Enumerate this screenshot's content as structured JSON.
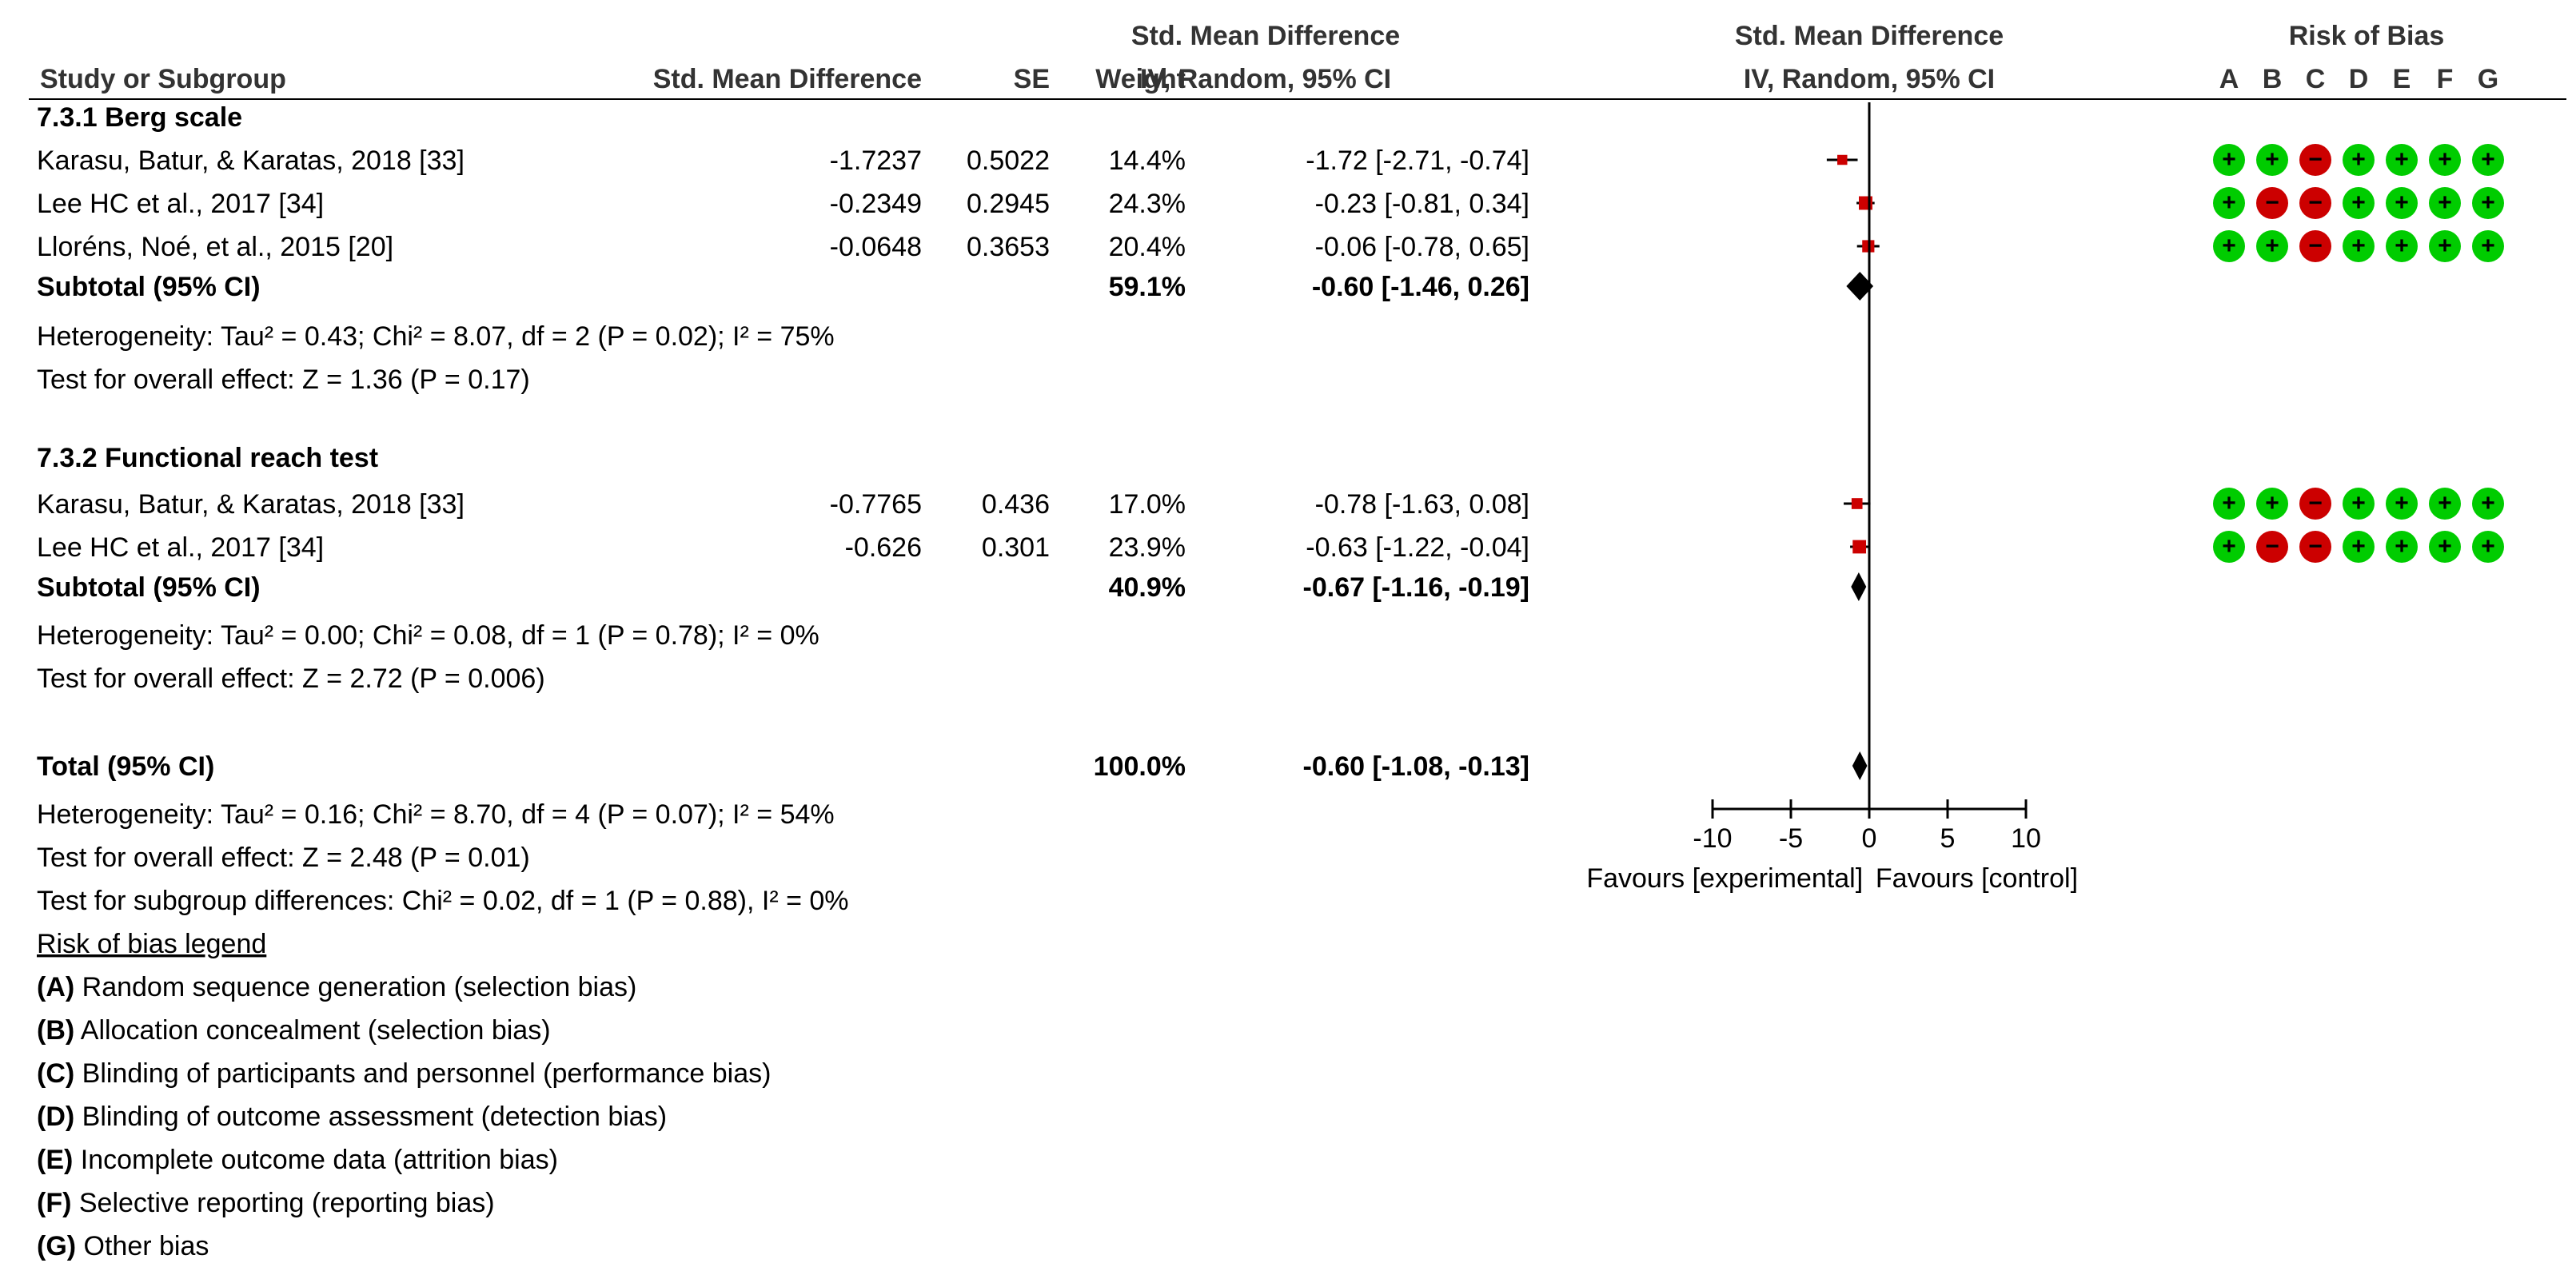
{
  "headers": {
    "study": "Study or Subgroup",
    "smd": "Std. Mean Difference",
    "se": "SE",
    "weight": "Weight",
    "ci_title": "Std. Mean Difference",
    "ci_sub": "IV, Random, 95% CI",
    "plot_title": "Std. Mean Difference",
    "plot_sub": "IV, Random, 95% CI",
    "rob_title": "Risk of Bias",
    "rob_letters": [
      "A",
      "B",
      "C",
      "D",
      "E",
      "F",
      "G"
    ]
  },
  "groups": [
    {
      "title": "7.3.1 Berg scale",
      "studies": [
        {
          "name": "Karasu, Batur, & Karatas, 2018 [33]",
          "smd": "-1.7237",
          "se": "0.5022",
          "weight": "14.4%",
          "ci": "-1.72 [-2.71, -0.74]",
          "est": -1.72,
          "lo": -2.71,
          "hi": -0.74,
          "w": 14.4,
          "rob": [
            "+",
            "+",
            "-",
            "+",
            "+",
            "+",
            "+"
          ]
        },
        {
          "name": "Lee HC et al., 2017 [34]",
          "smd": "-0.2349",
          "se": "0.2945",
          "weight": "24.3%",
          "ci": "-0.23 [-0.81, 0.34]",
          "est": -0.23,
          "lo": -0.81,
          "hi": 0.34,
          "w": 24.3,
          "rob": [
            "+",
            "-",
            "-",
            "+",
            "+",
            "+",
            "+"
          ]
        },
        {
          "name": "Lloréns, Noé, et al., 2015 [20]",
          "smd": "-0.0648",
          "se": "0.3653",
          "weight": "20.4%",
          "ci": "-0.06 [-0.78, 0.65]",
          "est": -0.06,
          "lo": -0.78,
          "hi": 0.65,
          "w": 20.4,
          "rob": [
            "+",
            "+",
            "-",
            "+",
            "+",
            "+",
            "+"
          ]
        }
      ],
      "subtotal": {
        "label": "Subtotal (95% CI)",
        "weight": "59.1%",
        "ci": "-0.60 [-1.46, 0.26]",
        "est": -0.6,
        "lo": -1.46,
        "hi": 0.26
      },
      "heterogeneity": "Heterogeneity: Tau² = 0.43; Chi² = 8.07, df = 2 (P = 0.02); I² = 75%",
      "overall": "Test for overall effect: Z = 1.36 (P = 0.17)"
    },
    {
      "title": "7.3.2 Functional reach test",
      "studies": [
        {
          "name": "Karasu, Batur, & Karatas, 2018 [33]",
          "smd": "-0.7765",
          "se": "0.436",
          "weight": "17.0%",
          "ci": "-0.78 [-1.63, 0.08]",
          "est": -0.78,
          "lo": -1.63,
          "hi": 0.08,
          "w": 17.0,
          "rob": [
            "+",
            "+",
            "-",
            "+",
            "+",
            "+",
            "+"
          ]
        },
        {
          "name": "Lee HC et al., 2017 [34]",
          "smd": "-0.626",
          "se": "0.301",
          "weight": "23.9%",
          "ci": "-0.63 [-1.22, -0.04]",
          "est": -0.63,
          "lo": -1.22,
          "hi": -0.04,
          "w": 23.9,
          "rob": [
            "+",
            "-",
            "-",
            "+",
            "+",
            "+",
            "+"
          ]
        }
      ],
      "subtotal": {
        "label": "Subtotal (95% CI)",
        "weight": "40.9%",
        "ci": "-0.67 [-1.16, -0.19]",
        "est": -0.67,
        "lo": -1.16,
        "hi": -0.19
      },
      "heterogeneity": "Heterogeneity: Tau² = 0.00; Chi² = 0.08, df = 1 (P = 0.78); I² = 0%",
      "overall": "Test for overall effect: Z = 2.72 (P = 0.006)"
    }
  ],
  "total": {
    "label": "Total (95% CI)",
    "weight": "100.0%",
    "ci": "-0.60 [-1.08, -0.13]",
    "est": -0.6,
    "lo": -1.08,
    "hi": -0.13,
    "heterogeneity": "Heterogeneity: Tau² = 0.16; Chi² = 8.70, df = 4 (P = 0.07); I² = 54%",
    "overall": "Test for overall effect: Z = 2.48 (P = 0.01)",
    "subgroup": "Test for subgroup differences: Chi² = 0.02, df = 1 (P = 0.88), I² = 0%"
  },
  "axis": {
    "ticks": [
      -10,
      -5,
      0,
      5,
      10
    ],
    "favours_left": "Favours [experimental]",
    "favours_right": "Favours [control]"
  },
  "legend": {
    "title": "Risk of bias legend",
    "items": [
      {
        "letter": "(A)",
        "text": " Random sequence generation (selection bias)"
      },
      {
        "letter": "(B)",
        "text": " Allocation concealment (selection bias)"
      },
      {
        "letter": "(C)",
        "text": " Blinding of participants and personnel (performance bias)"
      },
      {
        "letter": "(D)",
        "text": " Blinding of outcome assessment (detection bias)"
      },
      {
        "letter": "(E)",
        "text": " Incomplete outcome data (attrition bias)"
      },
      {
        "letter": "(F)",
        "text": " Selective reporting (reporting bias)"
      },
      {
        "letter": "(G)",
        "text": " Other bias"
      }
    ]
  },
  "colors": {
    "low_risk": "#00cc00",
    "high_risk": "#cc0000",
    "marker": "#cc0000",
    "diamond": "#000000"
  },
  "chart_data": {
    "type": "forest",
    "title": "Std. Mean Difference IV, Random, 95% CI",
    "xlabel": "",
    "xlim": [
      -10,
      10
    ],
    "series": [
      {
        "name": "Karasu, Batur, & Karatas, 2018 [33] (Berg)",
        "estimate": -1.72,
        "ci": [
          -2.71,
          -0.74
        ],
        "weight": 14.4
      },
      {
        "name": "Lee HC et al., 2017 [34] (Berg)",
        "estimate": -0.23,
        "ci": [
          -0.81,
          0.34
        ],
        "weight": 24.3
      },
      {
        "name": "Lloréns, Noé, et al., 2015 [20] (Berg)",
        "estimate": -0.06,
        "ci": [
          -0.78,
          0.65
        ],
        "weight": 20.4
      },
      {
        "name": "Subtotal Berg scale",
        "estimate": -0.6,
        "ci": [
          -1.46,
          0.26
        ],
        "weight": 59.1
      },
      {
        "name": "Karasu, Batur, & Karatas, 2018 [33] (FRT)",
        "estimate": -0.78,
        "ci": [
          -1.63,
          0.08
        ],
        "weight": 17.0
      },
      {
        "name": "Lee HC et al., 2017 [34] (FRT)",
        "estimate": -0.63,
        "ci": [
          -1.22,
          -0.04
        ],
        "weight": 23.9
      },
      {
        "name": "Subtotal Functional reach test",
        "estimate": -0.67,
        "ci": [
          -1.16,
          -0.19
        ],
        "weight": 40.9
      },
      {
        "name": "Total",
        "estimate": -0.6,
        "ci": [
          -1.08,
          -0.13
        ],
        "weight": 100.0
      }
    ]
  }
}
